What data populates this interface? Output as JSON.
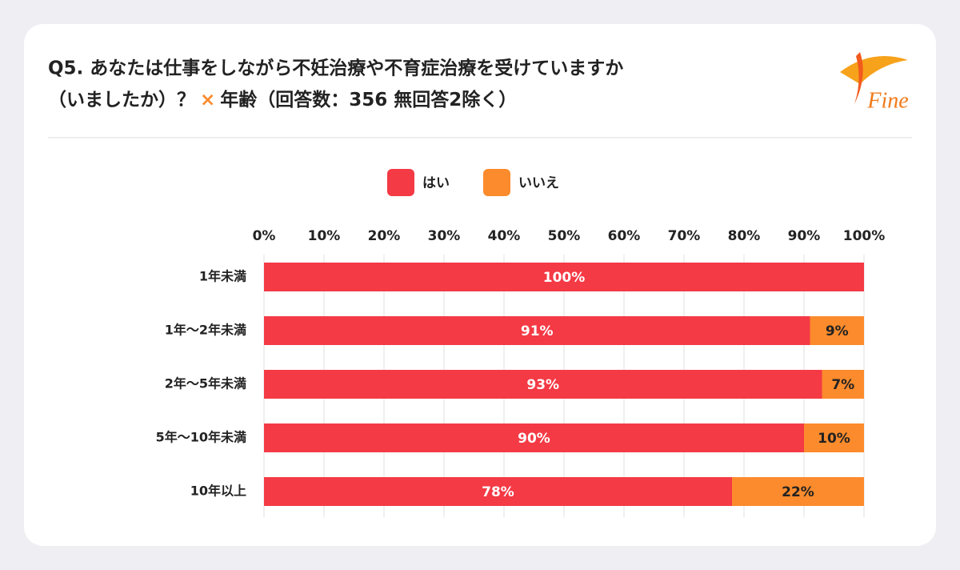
{
  "logo": "Fine",
  "chart_data": {
    "type": "stacked-barh",
    "title_lines": [
      "Q5. あなたは仕事をしながら不妊治療や不育症治療を受けていますか",
      "（いましたか）？",
      "×",
      "年齢（回答数：356 無回答2除く）"
    ],
    "categories": [
      "1年未満",
      "1年～2年未満",
      "2年～5年未満",
      "5年～10年未満",
      "10年以上"
    ],
    "series": [
      {
        "name": "はい",
        "color": "#f43a45",
        "values": [
          100,
          91,
          93,
          90,
          78
        ],
        "value_labels": [
          "100%",
          "91%",
          "93%",
          "90%",
          "78%"
        ],
        "label_color": "#ffffff"
      },
      {
        "name": "いいえ",
        "color": "#fb8b2c",
        "values": [
          null,
          9,
          7,
          10,
          22
        ],
        "value_labels": [
          null,
          "9%",
          "7%",
          "10%",
          "22%"
        ],
        "label_color": "#222222"
      }
    ],
    "xlim": [
      0,
      100
    ],
    "xticks": [
      {
        "value": 0,
        "label": "0%"
      },
      {
        "value": 10,
        "label": "10%"
      },
      {
        "value": 20,
        "label": "20%"
      },
      {
        "value": 30,
        "label": "30%"
      },
      {
        "value": 40,
        "label": "40%"
      },
      {
        "value": 50,
        "label": "50%"
      },
      {
        "value": 60,
        "label": "60%"
      },
      {
        "value": 70,
        "label": "70%"
      },
      {
        "value": 80,
        "label": "80%"
      },
      {
        "value": 90,
        "label": "90%"
      },
      {
        "value": 100,
        "label": "100%"
      }
    ],
    "grid": true,
    "legend": "top"
  }
}
